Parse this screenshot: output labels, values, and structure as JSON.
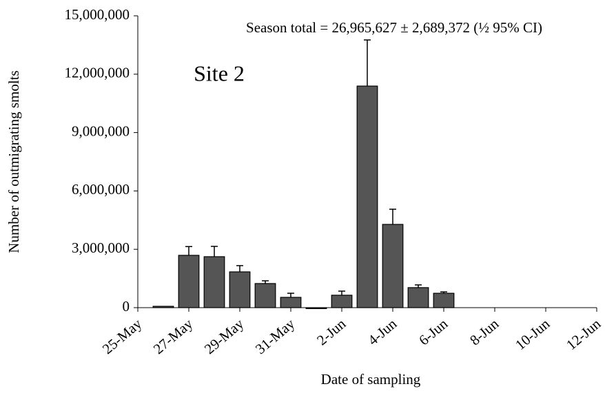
{
  "chart_data": {
    "type": "bar",
    "annotations": [
      "Season total = 26,965,627 ± 2,689,372 (½ 95% CI)",
      "Site 2"
    ],
    "x_label": "Date of sampling",
    "y_label": "Number of outmigrating smolts",
    "categories": [
      "25-May",
      null,
      "27-May",
      null,
      "29-May",
      null,
      "31-May",
      null,
      "2-Jun",
      null,
      "4-Jun",
      null,
      "6-Jun",
      null,
      "8-Jun",
      null,
      "10-Jun",
      null,
      "12-Jun"
    ],
    "values": [
      null,
      70000,
      2690000,
      2620000,
      1840000,
      1240000,
      530000,
      -50000,
      640000,
      11390000,
      4280000,
      1030000,
      740000,
      null,
      null,
      null,
      null,
      null,
      null
    ],
    "errors": [
      null,
      null,
      450000,
      530000,
      320000,
      140000,
      210000,
      null,
      210000,
      2370000,
      780000,
      140000,
      70000,
      null,
      null,
      null,
      null,
      null,
      null
    ],
    "color": "#555555",
    "ylim": [
      0,
      15000000
    ],
    "yticks": [
      0,
      {
        "value": 3000000,
        "label": "3,000,000"
      },
      {
        "value": 6000000,
        "label": "6,000,000"
      },
      {
        "value": 9000000,
        "label": "9,000,000"
      },
      {
        "value": 12000000,
        "label": "12,000,000"
      },
      {
        "value": 15000000,
        "label": "15,000,000"
      }
    ],
    "grid": false
  }
}
